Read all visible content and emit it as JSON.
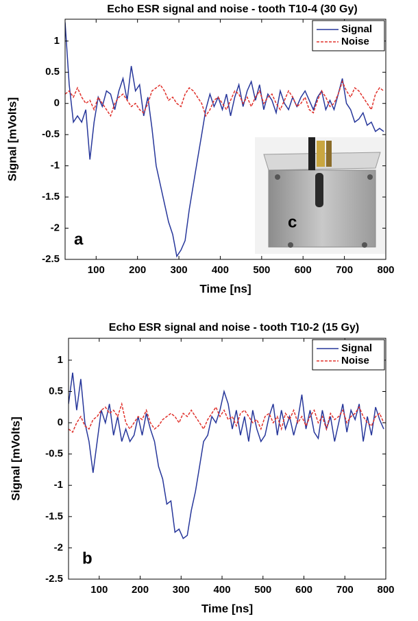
{
  "chart_data": [
    {
      "type": "line",
      "title": "Echo ESR signal and noise - tooth T10-4  (30 Gy)",
      "xlabel": "Time [ns]",
      "ylabel": "Signal [mVolts]",
      "panel_label": "a",
      "inset_label": "c",
      "legend": "upper right",
      "x": [
        25,
        35,
        45,
        55,
        65,
        75,
        85,
        95,
        105,
        115,
        125,
        135,
        145,
        155,
        165,
        175,
        185,
        195,
        205,
        215,
        225,
        235,
        245,
        255,
        265,
        275,
        285,
        295,
        305,
        315,
        325,
        335,
        345,
        355,
        365,
        375,
        385,
        395,
        405,
        415,
        425,
        435,
        445,
        455,
        465,
        475,
        485,
        495,
        505,
        515,
        525,
        535,
        545,
        555,
        565,
        575,
        585,
        595,
        605,
        615,
        625,
        635,
        645,
        655,
        665,
        675,
        685,
        695,
        705,
        715,
        725,
        735,
        745,
        755,
        765,
        775,
        785,
        795
      ],
      "series": [
        {
          "name": "Signal",
          "color": "#26369a",
          "linestyle": "solid",
          "values": [
            1.3,
            0.3,
            -0.3,
            -0.2,
            -0.3,
            -0.1,
            -0.9,
            -0.3,
            0.1,
            -0.05,
            0.2,
            0.15,
            -0.1,
            0.2,
            0.4,
            0.05,
            0.6,
            0.2,
            0.3,
            -0.2,
            0.1,
            -0.4,
            -1.0,
            -1.3,
            -1.6,
            -1.9,
            -2.1,
            -2.45,
            -2.35,
            -2.2,
            -1.7,
            -1.3,
            -0.9,
            -0.5,
            -0.1,
            0.15,
            -0.05,
            0.1,
            -0.1,
            0.15,
            -0.2,
            0.1,
            0.3,
            -0.05,
            0.2,
            0.35,
            0.05,
            0.3,
            -0.1,
            0.15,
            0.05,
            -0.15,
            0.2,
            0.0,
            -0.1,
            0.1,
            -0.05,
            0.1,
            0.2,
            0.05,
            -0.1,
            0.1,
            0.2,
            -0.1,
            0.05,
            -0.1,
            0.15,
            0.4,
            0.0,
            -0.1,
            -0.3,
            -0.25,
            -0.15,
            -0.35,
            -0.3,
            -0.45,
            -0.4,
            -0.45
          ]
        },
        {
          "name": "Noise",
          "color": "#e0302a",
          "linestyle": "dashed",
          "values": [
            0.15,
            0.2,
            0.1,
            0.25,
            0.1,
            0.0,
            0.05,
            -0.1,
            0.1,
            0.0,
            -0.1,
            -0.2,
            0.0,
            0.1,
            0.15,
            0.05,
            -0.05,
            0.0,
            -0.1,
            -0.15,
            0.0,
            0.2,
            0.25,
            0.3,
            0.2,
            0.05,
            0.1,
            0.0,
            -0.05,
            0.15,
            0.25,
            0.2,
            0.1,
            0.0,
            -0.2,
            -0.1,
            0.05,
            0.1,
            0.0,
            -0.1,
            0.05,
            0.2,
            0.15,
            0.0,
            0.1,
            -0.05,
            0.1,
            0.2,
            0.0,
            0.1,
            0.15,
            0.0,
            -0.1,
            0.05,
            0.2,
            0.1,
            -0.05,
            0.0,
            0.1,
            -0.1,
            -0.15,
            0.05,
            0.2,
            0.1,
            -0.05,
            0.0,
            0.15,
            0.35,
            0.2,
            0.1,
            0.25,
            0.2,
            0.1,
            0.0,
            -0.1,
            0.15,
            0.25,
            0.2
          ]
        }
      ],
      "xlim": [
        25,
        800
      ],
      "ylim": [
        -2.5,
        1.35
      ],
      "xticks": [
        100,
        200,
        300,
        400,
        500,
        600,
        700,
        800
      ],
      "yticks": [
        1,
        0.5,
        0,
        -0.5,
        -1,
        -1.5,
        -2,
        -2.5
      ]
    },
    {
      "type": "line",
      "title": "Echo ESR signal and noise - tooth T10-2  (15 Gy)",
      "xlabel": "Time [ns]",
      "ylabel": "Signal [mVolts]",
      "panel_label": "b",
      "legend": "upper right",
      "x": [
        25,
        35,
        45,
        55,
        65,
        75,
        85,
        95,
        105,
        115,
        125,
        135,
        145,
        155,
        165,
        175,
        185,
        195,
        205,
        215,
        225,
        235,
        245,
        255,
        265,
        275,
        285,
        295,
        305,
        315,
        325,
        335,
        345,
        355,
        365,
        375,
        385,
        395,
        405,
        415,
        425,
        435,
        445,
        455,
        465,
        475,
        485,
        495,
        505,
        515,
        525,
        535,
        545,
        555,
        565,
        575,
        585,
        595,
        605,
        615,
        625,
        635,
        645,
        655,
        665,
        675,
        685,
        695,
        705,
        715,
        725,
        735,
        745,
        755,
        765,
        775,
        785,
        795
      ],
      "series": [
        {
          "name": "Signal",
          "color": "#26369a",
          "linestyle": "solid",
          "values": [
            0.3,
            0.8,
            0.2,
            0.7,
            0.0,
            -0.3,
            -0.8,
            -0.3,
            0.2,
            0.0,
            0.3,
            -0.2,
            0.1,
            -0.3,
            -0.1,
            -0.3,
            -0.2,
            0.1,
            -0.2,
            0.15,
            -0.1,
            -0.3,
            -0.7,
            -0.9,
            -1.3,
            -1.25,
            -1.75,
            -1.7,
            -1.85,
            -1.8,
            -1.4,
            -1.1,
            -0.7,
            -0.3,
            -0.2,
            0.1,
            0.0,
            0.2,
            0.5,
            0.3,
            -0.1,
            0.2,
            -0.2,
            0.1,
            -0.3,
            0.2,
            -0.1,
            -0.3,
            -0.2,
            0.1,
            0.3,
            -0.2,
            0.2,
            -0.1,
            0.1,
            -0.2,
            0.05,
            0.45,
            -0.1,
            0.2,
            -0.15,
            -0.25,
            0.2,
            -0.1,
            0.1,
            -0.3,
            0.0,
            0.3,
            -0.15,
            0.2,
            0.05,
            0.3,
            -0.3,
            0.1,
            -0.2,
            0.25,
            0.05,
            -0.1
          ]
        },
        {
          "name": "Noise",
          "color": "#e0302a",
          "linestyle": "dashed",
          "values": [
            -0.1,
            -0.15,
            0.0,
            0.1,
            -0.05,
            -0.1,
            0.05,
            0.1,
            0.2,
            0.25,
            0.15,
            0.2,
            0.1,
            0.3,
            0.0,
            -0.1,
            0.0,
            0.1,
            0.05,
            0.2,
            0.0,
            -0.1,
            -0.05,
            0.05,
            0.1,
            0.15,
            0.1,
            0.0,
            0.15,
            0.1,
            0.2,
            0.1,
            0.0,
            -0.1,
            0.05,
            0.15,
            0.25,
            0.1,
            0.2,
            0.05,
            0.1,
            -0.05,
            0.15,
            0.2,
            0.1,
            0.0,
            0.05,
            -0.1,
            0.1,
            0.15,
            0.0,
            0.1,
            -0.1,
            0.15,
            0.05,
            0.2,
            0.0,
            0.1,
            -0.05,
            0.1,
            0.2,
            0.0,
            0.1,
            -0.1,
            0.15,
            0.05,
            0.1,
            0.2,
            0.0,
            0.1,
            0.15,
            0.25,
            0.1,
            0.0,
            -0.05,
            0.1,
            0.15,
            0.0
          ]
        }
      ],
      "xlim": [
        25,
        800
      ],
      "ylim": [
        -2.5,
        1.35
      ],
      "xticks": [
        100,
        200,
        300,
        400,
        500,
        600,
        700,
        800
      ],
      "yticks": [
        1,
        0.5,
        0,
        -0.5,
        -1,
        -1.5,
        -2,
        -2.5
      ]
    }
  ]
}
